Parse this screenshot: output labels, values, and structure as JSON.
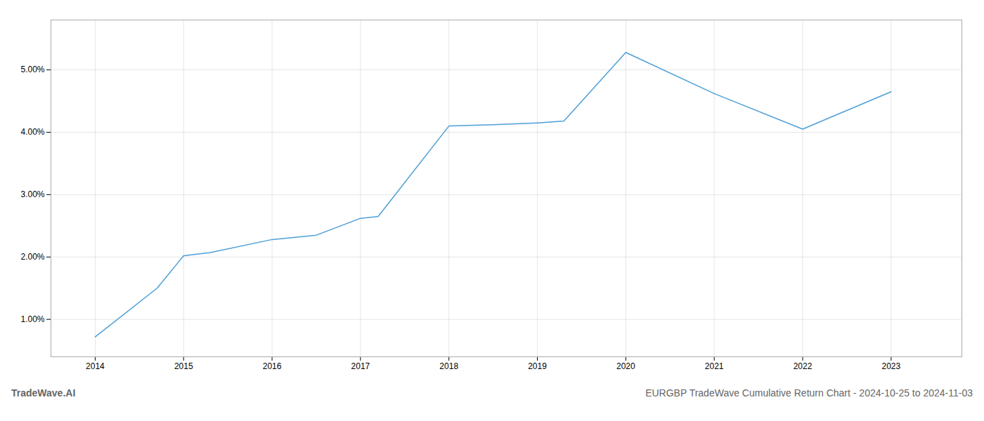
{
  "chart_data": {
    "type": "line",
    "title": "EURGBP TradeWave Cumulative Return Chart - 2024-10-25 to 2024-11-03",
    "annotations": [
      "TradeWave.AI"
    ],
    "x": [
      2014,
      2014.7,
      2015,
      2015.3,
      2016,
      2016.5,
      2017,
      2017.2,
      2018,
      2018.5,
      2019,
      2019.3,
      2020,
      2021,
      2022,
      2023
    ],
    "values": [
      0.72,
      1.5,
      2.02,
      2.07,
      2.28,
      2.35,
      2.62,
      2.65,
      4.1,
      4.12,
      4.15,
      4.18,
      5.28,
      4.62,
      4.05,
      4.65
    ],
    "color": "#4d9fd6",
    "xlim": [
      2013.5,
      2023.8
    ],
    "ylim": [
      0.4,
      5.8
    ],
    "xticks": [
      2014,
      2015,
      2016,
      2017,
      2018,
      2019,
      2020,
      2021,
      2022,
      2023
    ],
    "yticks": [
      {
        "value": 1.0,
        "label": "1.00%"
      },
      {
        "value": 2.0,
        "label": "2.00%"
      },
      {
        "value": 3.0,
        "label": "3.00%"
      },
      {
        "value": 4.0,
        "label": "4.00%"
      },
      {
        "value": 5.0,
        "label": "5.00%"
      }
    ],
    "grid": true
  }
}
